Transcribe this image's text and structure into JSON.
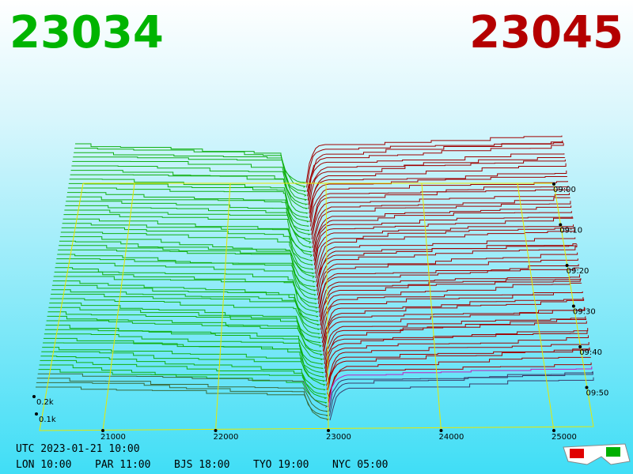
{
  "header": {
    "bid": "23034",
    "ask": "23045"
  },
  "price_axis": {
    "ticks": [
      "21000",
      "22000",
      "23000",
      "24000",
      "25000"
    ]
  },
  "depth_axis": {
    "ticks": [
      "0.2k",
      "0.1k"
    ]
  },
  "time_axis": {
    "ticks": [
      "09:00",
      "09:10",
      "09:20",
      "09:30",
      "09:40",
      "09:50"
    ]
  },
  "footer": {
    "utc": "UTC 2023-01-21 10:00",
    "zones": [
      "LON 10:00",
      "PAR 11:00",
      "BJS 18:00",
      "TYO 19:00",
      "NYC 05:00"
    ]
  }
}
